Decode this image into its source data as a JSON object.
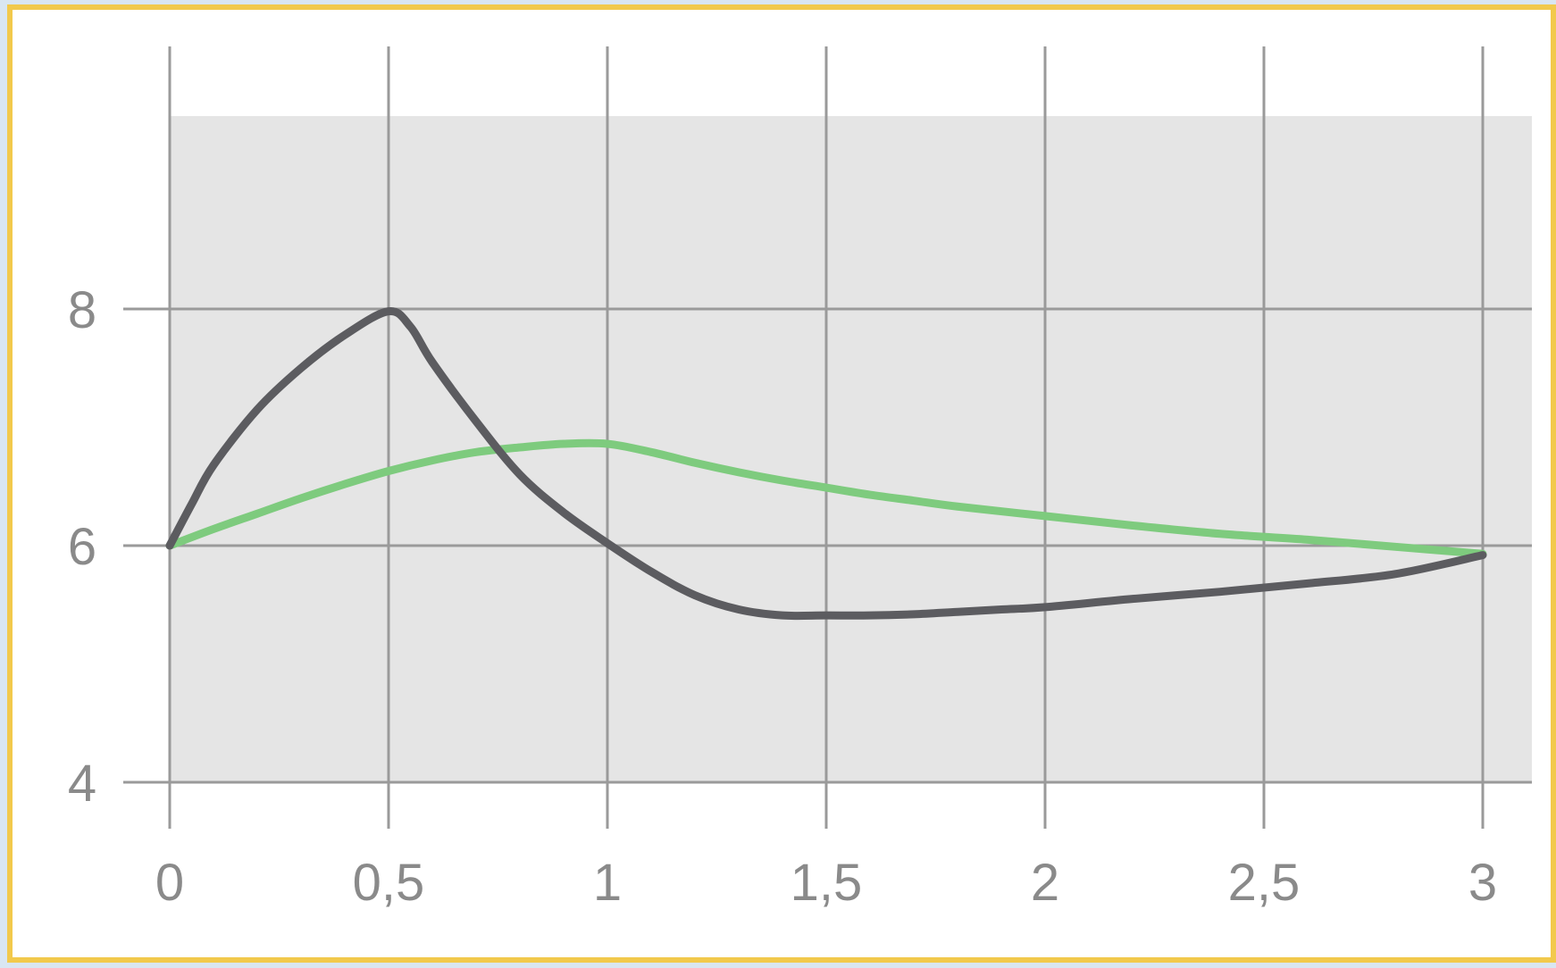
{
  "chart_data": {
    "type": "line",
    "title": "",
    "xlabel": "",
    "ylabel": "",
    "xlim": [
      0,
      3
    ],
    "ylim": [
      4,
      9.3
    ],
    "grid": true,
    "x_ticks": [
      "0",
      "0,5",
      "1",
      "1,5",
      "2",
      "2,5",
      "3"
    ],
    "y_ticks": [
      "4",
      "6",
      "8"
    ],
    "colors": {
      "frame_border": "#f2c94c",
      "plot_background": "#e5e5e5",
      "grid": "#9a9a9a",
      "series_dark": "#5c5c60",
      "series_green": "#7ecb7e"
    },
    "series": [
      {
        "color": "#5c5c60",
        "points": [
          [
            0,
            6.0
          ],
          [
            0.05,
            6.35
          ],
          [
            0.1,
            6.68
          ],
          [
            0.2,
            7.15
          ],
          [
            0.3,
            7.5
          ],
          [
            0.4,
            7.78
          ],
          [
            0.5,
            7.98
          ],
          [
            0.55,
            7.85
          ],
          [
            0.6,
            7.55
          ],
          [
            0.7,
            7.05
          ],
          [
            0.8,
            6.6
          ],
          [
            0.9,
            6.28
          ],
          [
            1.0,
            6.02
          ],
          [
            1.1,
            5.78
          ],
          [
            1.2,
            5.58
          ],
          [
            1.3,
            5.46
          ],
          [
            1.4,
            5.41
          ],
          [
            1.5,
            5.41
          ],
          [
            1.6,
            5.41
          ],
          [
            1.7,
            5.42
          ],
          [
            1.8,
            5.44
          ],
          [
            1.9,
            5.46
          ],
          [
            2.0,
            5.48
          ],
          [
            2.2,
            5.55
          ],
          [
            2.4,
            5.61
          ],
          [
            2.6,
            5.68
          ],
          [
            2.8,
            5.76
          ],
          [
            3.0,
            5.92
          ]
        ]
      },
      {
        "color": "#7ecb7e",
        "points": [
          [
            0,
            6.0
          ],
          [
            0.1,
            6.14
          ],
          [
            0.2,
            6.27
          ],
          [
            0.3,
            6.4
          ],
          [
            0.4,
            6.52
          ],
          [
            0.5,
            6.63
          ],
          [
            0.6,
            6.72
          ],
          [
            0.7,
            6.79
          ],
          [
            0.8,
            6.83
          ],
          [
            0.9,
            6.86
          ],
          [
            1.0,
            6.86
          ],
          [
            1.1,
            6.79
          ],
          [
            1.2,
            6.7
          ],
          [
            1.3,
            6.62
          ],
          [
            1.4,
            6.55
          ],
          [
            1.5,
            6.49
          ],
          [
            1.6,
            6.43
          ],
          [
            1.7,
            6.38
          ],
          [
            1.8,
            6.33
          ],
          [
            2.0,
            6.25
          ],
          [
            2.2,
            6.17
          ],
          [
            2.4,
            6.1
          ],
          [
            2.6,
            6.05
          ],
          [
            2.8,
            5.99
          ],
          [
            3.0,
            5.93
          ]
        ]
      }
    ]
  }
}
